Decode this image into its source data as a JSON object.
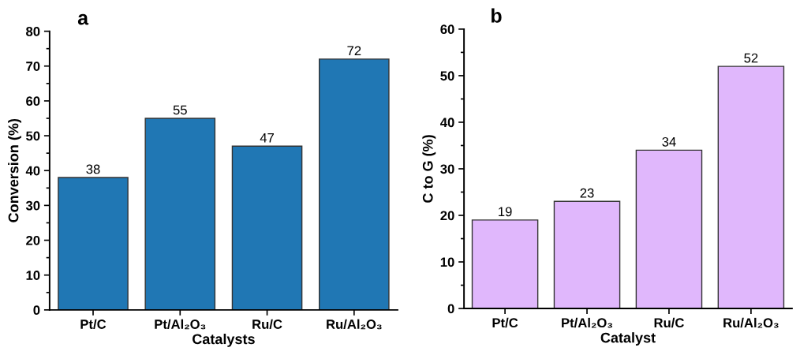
{
  "chart_data": [
    {
      "type": "bar",
      "title": "a",
      "xlabel": "Catalysts",
      "ylabel": "Conversion (%)",
      "categories": [
        "Pt/C",
        "Pt/Al₂O₃",
        "Ru/C",
        "Ru/Al₂O₃"
      ],
      "values": [
        38,
        55,
        47,
        72
      ],
      "color": "#2077b4",
      "ylim": [
        0,
        80
      ],
      "yticks": [
        0,
        10,
        20,
        30,
        40,
        50,
        60,
        70,
        80
      ],
      "data_labels": true
    },
    {
      "type": "bar",
      "title": "b",
      "xlabel": "Catalyst",
      "ylabel": "C to G (%)",
      "categories": [
        "Pt/C",
        "Pt/Al₂O₃",
        "Ru/C",
        "Ru/Al₂O₃"
      ],
      "values": [
        19,
        23,
        34,
        52
      ],
      "color": "#e0b7fc",
      "ylim": [
        0,
        60
      ],
      "yticks": [
        0,
        10,
        20,
        30,
        40,
        50,
        60
      ],
      "data_labels": true
    }
  ]
}
